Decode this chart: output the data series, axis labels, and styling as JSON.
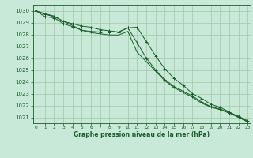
{
  "x": [
    0,
    1,
    2,
    3,
    4,
    5,
    6,
    7,
    8,
    9,
    10,
    11,
    12,
    13,
    14,
    15,
    16,
    17,
    18,
    19,
    20,
    21,
    22,
    23
  ],
  "line1": [
    1030.0,
    1029.7,
    1029.5,
    1029.1,
    1028.9,
    1028.7,
    1028.6,
    1028.4,
    1028.3,
    1028.2,
    1028.55,
    1027.3,
    1026.0,
    1025.0,
    1024.2,
    1023.6,
    1023.2,
    1022.8,
    1022.3,
    1021.9,
    1021.7,
    1021.4,
    1021.1,
    1020.7
  ],
  "line2": [
    1030.0,
    1029.5,
    1029.4,
    1028.9,
    1028.65,
    1028.35,
    1028.25,
    1028.2,
    1028.2,
    1028.2,
    1028.55,
    1028.6,
    1027.4,
    1026.2,
    1025.1,
    1024.3,
    1023.7,
    1023.0,
    1022.6,
    1022.1,
    1021.85,
    1021.45,
    1021.05,
    1020.65
  ],
  "line3": [
    1030.0,
    1029.75,
    1029.55,
    1029.1,
    1028.75,
    1028.35,
    1028.15,
    1028.05,
    1027.95,
    1027.95,
    1028.25,
    1026.5,
    1025.7,
    1024.9,
    1024.1,
    1023.5,
    1023.1,
    1022.7,
    1022.2,
    1021.85,
    1021.65,
    1021.35,
    1021.0,
    1020.6
  ],
  "bg_color": "#c8e8d8",
  "grid_color": "#a0c8a8",
  "line_color": "#1a5c2a",
  "label": "Graphe pression niveau de la mer (hPa)",
  "ylim_min": 1020.5,
  "ylim_max": 1030.5,
  "yticks": [
    1021,
    1022,
    1023,
    1024,
    1025,
    1026,
    1027,
    1028,
    1029,
    1030
  ],
  "figw": 3.2,
  "figh": 2.0,
  "dpi": 100
}
